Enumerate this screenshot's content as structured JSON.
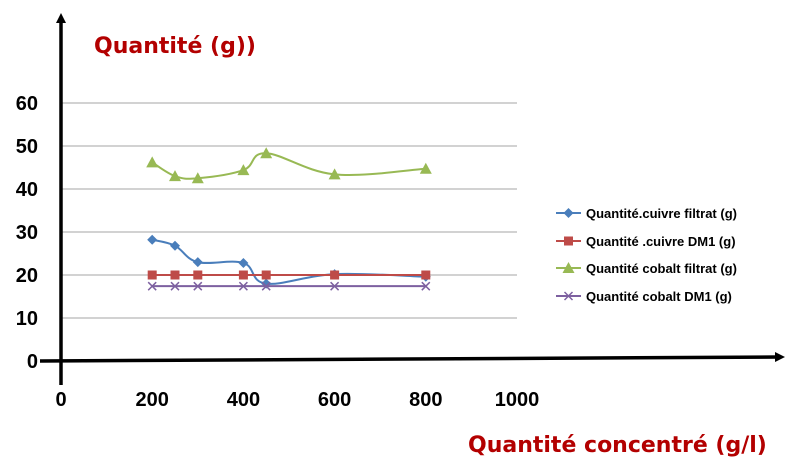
{
  "chart_data": {
    "type": "line",
    "ylabel": "Quantité (g))",
    "xlabel": "Quantité concentré (g/l)",
    "xlim": [
      0,
      1000
    ],
    "ylim": [
      0,
      60
    ],
    "xticks": [
      "0",
      "200",
      "400",
      "600",
      "800",
      "1000"
    ],
    "yticks": [
      "0",
      "10",
      "20",
      "30",
      "40",
      "50",
      "60"
    ],
    "grid": "horizontal",
    "legend_position": "right",
    "series": [
      {
        "name": "Quantité.cuivre filtrat (g)",
        "color": "#4a7ebb",
        "marker": "diamond",
        "x": [
          200,
          250,
          300,
          400,
          450,
          600,
          800
        ],
        "y": [
          28.2,
          26.8,
          23,
          22.8,
          18,
          20.2,
          19.6
        ]
      },
      {
        "name": "Quantité .cuivre DM1 (g)",
        "color": "#be4b48",
        "marker": "square",
        "x": [
          200,
          250,
          300,
          400,
          450,
          600,
          800
        ],
        "y": [
          20,
          20,
          20,
          20,
          20,
          20,
          20
        ]
      },
      {
        "name": "Quantité  cobalt filtrat (g)",
        "color": "#98b954",
        "marker": "triangle",
        "x": [
          200,
          250,
          300,
          400,
          450,
          600,
          800
        ],
        "y": [
          46.2,
          43,
          42.5,
          44.4,
          48.3,
          43.4,
          44.7
        ]
      },
      {
        "name": "Quantité   cobalt DM1 (g)",
        "color": "#7d60a0",
        "marker": "x",
        "x": [
          200,
          250,
          300,
          400,
          450,
          600,
          800
        ],
        "y": [
          17.4,
          17.4,
          17.4,
          17.4,
          17.4,
          17.4,
          17.4
        ]
      }
    ]
  }
}
